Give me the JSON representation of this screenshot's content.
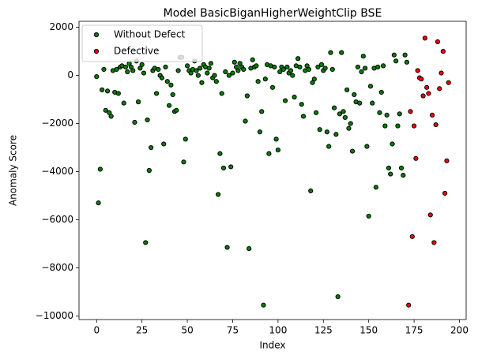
{
  "chart_data": {
    "type": "scatter",
    "title": "Model BasicBiganHigherWeightClip BSE",
    "x_label": "Index",
    "y_label": "Anomaly Score",
    "xlim": [
      -9.7,
      203.7
    ],
    "ylim": [
      -10150,
      2250
    ],
    "xticks": [
      0,
      25,
      50,
      75,
      100,
      125,
      150,
      175,
      200
    ],
    "yticks": [
      {
        "value": -10000,
        "label": "−10000"
      },
      {
        "value": -8000,
        "label": "−8000"
      },
      {
        "value": -6000,
        "label": "−6000"
      },
      {
        "value": -4000,
        "label": "−4000"
      },
      {
        "value": -2000,
        "label": "−2000"
      },
      0,
      2000
    ],
    "legend": "upper left",
    "series": [
      {
        "name": "Without Defect",
        "color": "green",
        "x": [
          0,
          1,
          2,
          3,
          4,
          5,
          6,
          7,
          8,
          9,
          10,
          11,
          12,
          13,
          14,
          15,
          16,
          17,
          18,
          19,
          20,
          21,
          22,
          23,
          24,
          25,
          26,
          27,
          28,
          29,
          30,
          31,
          32,
          33,
          34,
          35,
          36,
          37,
          38,
          39,
          40,
          41,
          42,
          43,
          44,
          45,
          46,
          47,
          48,
          49,
          50,
          51,
          52,
          53,
          54,
          55,
          56,
          57,
          58,
          59,
          60,
          61,
          62,
          63,
          64,
          65,
          66,
          67,
          68,
          69,
          70,
          71,
          72,
          73,
          74,
          75,
          76,
          77,
          78,
          79,
          80,
          81,
          82,
          83,
          84,
          85,
          86,
          87,
          88,
          89,
          90,
          91,
          92,
          93,
          94,
          95,
          96,
          97,
          98,
          99,
          100,
          101,
          102,
          103,
          104,
          105,
          106,
          107,
          108,
          109,
          110,
          111,
          112,
          113,
          114,
          115,
          116,
          117,
          118,
          119,
          120,
          121,
          122,
          123,
          124,
          125,
          126,
          127,
          128,
          129,
          130,
          131,
          132,
          133,
          134,
          135,
          136,
          137,
          138,
          139,
          140,
          141,
          142,
          143,
          144,
          145,
          146,
          147,
          148,
          149,
          150,
          151,
          152,
          153,
          154,
          155,
          156,
          157,
          158,
          159,
          160,
          161,
          162,
          163,
          164,
          165,
          166,
          167,
          168,
          169,
          170,
          171
        ],
        "values": [
          -50,
          -5300,
          -3900,
          -600,
          250,
          -1450,
          -650,
          -1550,
          -1700,
          200,
          -700,
          250,
          -750,
          350,
          400,
          -1150,
          350,
          150,
          500,
          350,
          200,
          -1950,
          600,
          -1100,
          300,
          450,
          100,
          -6950,
          -1850,
          -3950,
          -3000,
          200,
          300,
          -750,
          250,
          0,
          -100,
          -2850,
          350,
          -250,
          -1250,
          -400,
          -800,
          -1500,
          -1450,
          200,
          750,
          750,
          -3600,
          -2650,
          400,
          200,
          100,
          250,
          600,
          200,
          0,
          300,
          -300,
          450,
          350,
          100,
          300,
          500,
          -100,
          0,
          -250,
          -4950,
          -3250,
          -750,
          -3850,
          150,
          -7150,
          0,
          -3800,
          100,
          550,
          350,
          200,
          500,
          350,
          250,
          -1900,
          -850,
          -7200,
          300,
          650,
          350,
          400,
          -250,
          -2350,
          -1500,
          -9550,
          -150,
          450,
          -3250,
          400,
          -500,
          350,
          -2650,
          -3100,
          150,
          350,
          250,
          -1050,
          350,
          100,
          200,
          0,
          -900,
          400,
          700,
          350,
          -1200,
          -1700,
          200,
          400,
          250,
          -4800,
          -300,
          -150,
          -1550,
          350,
          -2250,
          450,
          200,
          300,
          -2350,
          -2950,
          950,
          250,
          -1350,
          -2450,
          -9200,
          -1600,
          950,
          -1500,
          -1750,
          -600,
          -2200,
          -2000,
          -3150,
          -800,
          -1100,
          350,
          -1150,
          150,
          800,
          300,
          -2950,
          -5850,
          -450,
          -1150,
          300,
          -4650,
          350,
          -1550,
          -700,
          400,
          -2100,
          -1650,
          -3850,
          -4100,
          -2850,
          850,
          600,
          -2100,
          -1600,
          -3850,
          -4150,
          850,
          550
        ]
      },
      {
        "name": "Defective",
        "color": "red",
        "x": [
          172,
          173,
          174,
          175,
          176,
          177,
          178,
          179,
          180,
          181,
          182,
          183,
          184,
          185,
          186,
          187,
          188,
          189,
          190,
          191,
          192,
          193,
          194
        ],
        "values": [
          -9550,
          -1500,
          -6700,
          -2100,
          -3450,
          200,
          -100,
          -150,
          -850,
          1550,
          -500,
          -750,
          -5800,
          -1650,
          -6950,
          -2050,
          1400,
          -550,
          100,
          1000,
          -4900,
          -3550,
          -300
        ]
      }
    ]
  }
}
